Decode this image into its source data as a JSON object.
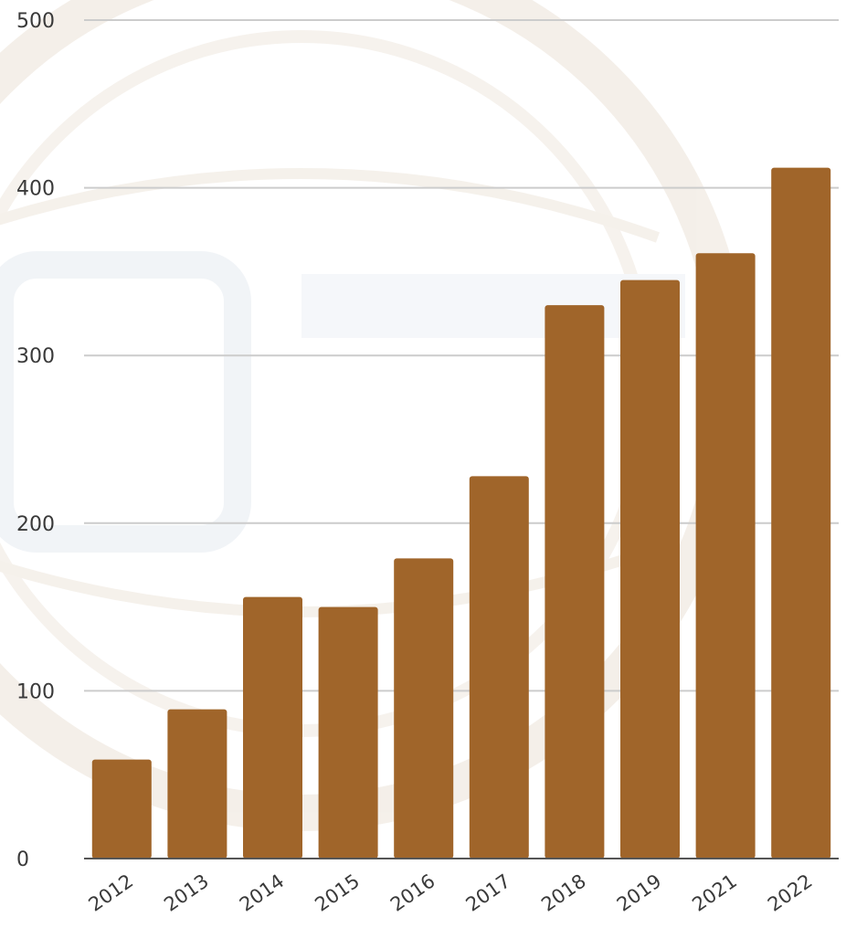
{
  "colors": {
    "bar": "#A0652A",
    "grid": "#cccccc",
    "axis": "#555555",
    "watermark": "#e9ddd0"
  },
  "watermark": {
    "icon": "basketball-federation-logo-watermark"
  },
  "chart_data": {
    "type": "bar",
    "categories": [
      "2012",
      "2013",
      "2014",
      "2015",
      "2016",
      "2017",
      "2018",
      "2019",
      "2021",
      "2022"
    ],
    "values": [
      59,
      89,
      156,
      150,
      179,
      228,
      330,
      345,
      361,
      412
    ],
    "yticks": [
      "0",
      "100",
      "200",
      "300",
      "400",
      "500"
    ],
    "ylim": [
      0,
      500
    ],
    "grid": true,
    "legend": "none"
  }
}
